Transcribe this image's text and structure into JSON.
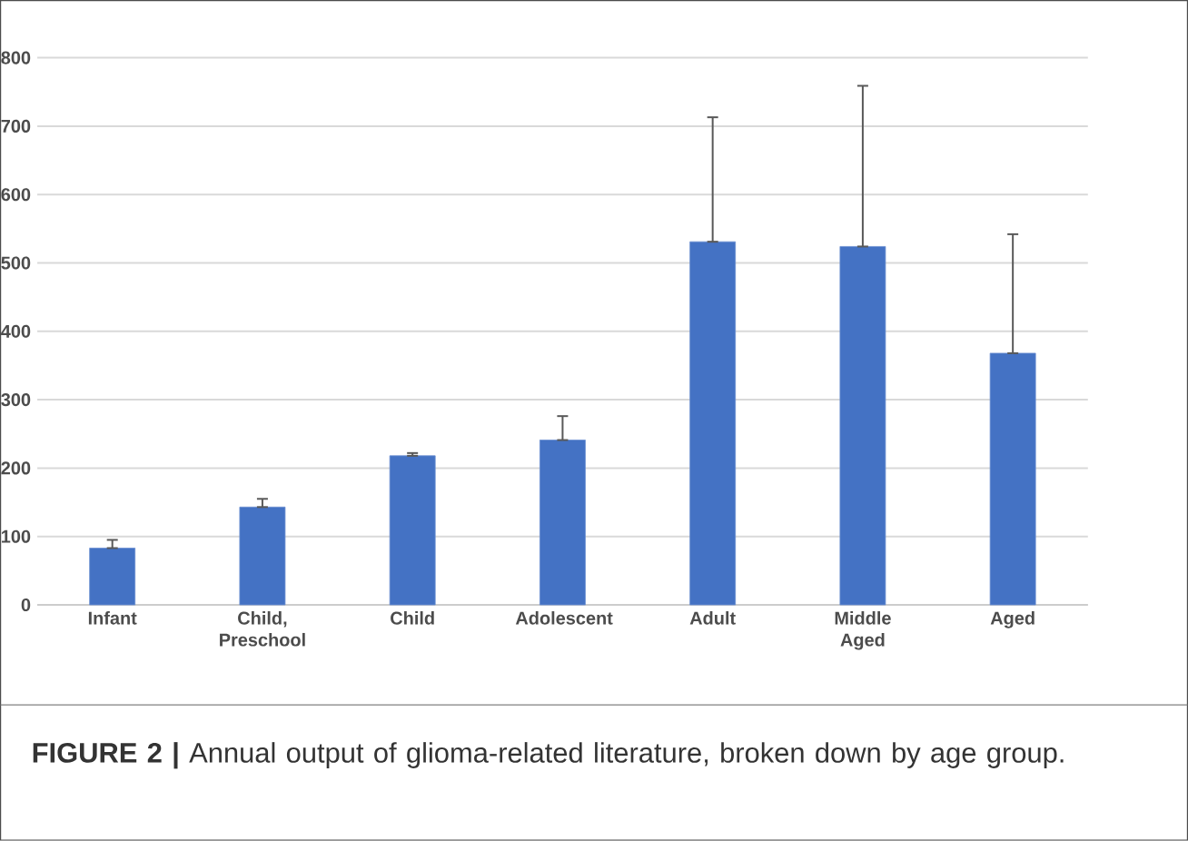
{
  "chart_data": {
    "type": "bar",
    "categories": [
      "Infant",
      "Child, Preschool",
      "Child",
      "Adolescent",
      "Adult",
      "Middle Aged",
      "Aged"
    ],
    "values": [
      83,
      143,
      218,
      241,
      531,
      524,
      368
    ],
    "errors": [
      [
        83,
        95
      ],
      [
        143,
        155
      ],
      [
        218,
        222
      ],
      [
        241,
        276
      ],
      [
        531,
        713
      ],
      [
        524,
        759
      ],
      [
        368,
        542
      ]
    ],
    "color": "#4472c4",
    "ylim": [
      0,
      800
    ],
    "yticks": [
      0,
      100,
      200,
      300,
      400,
      500,
      600,
      700,
      800
    ],
    "grid": "y",
    "annotations": [
      "**FIGURE 2 |** Annual output of glioma-related literature, broken down by age group."
    ]
  }
}
